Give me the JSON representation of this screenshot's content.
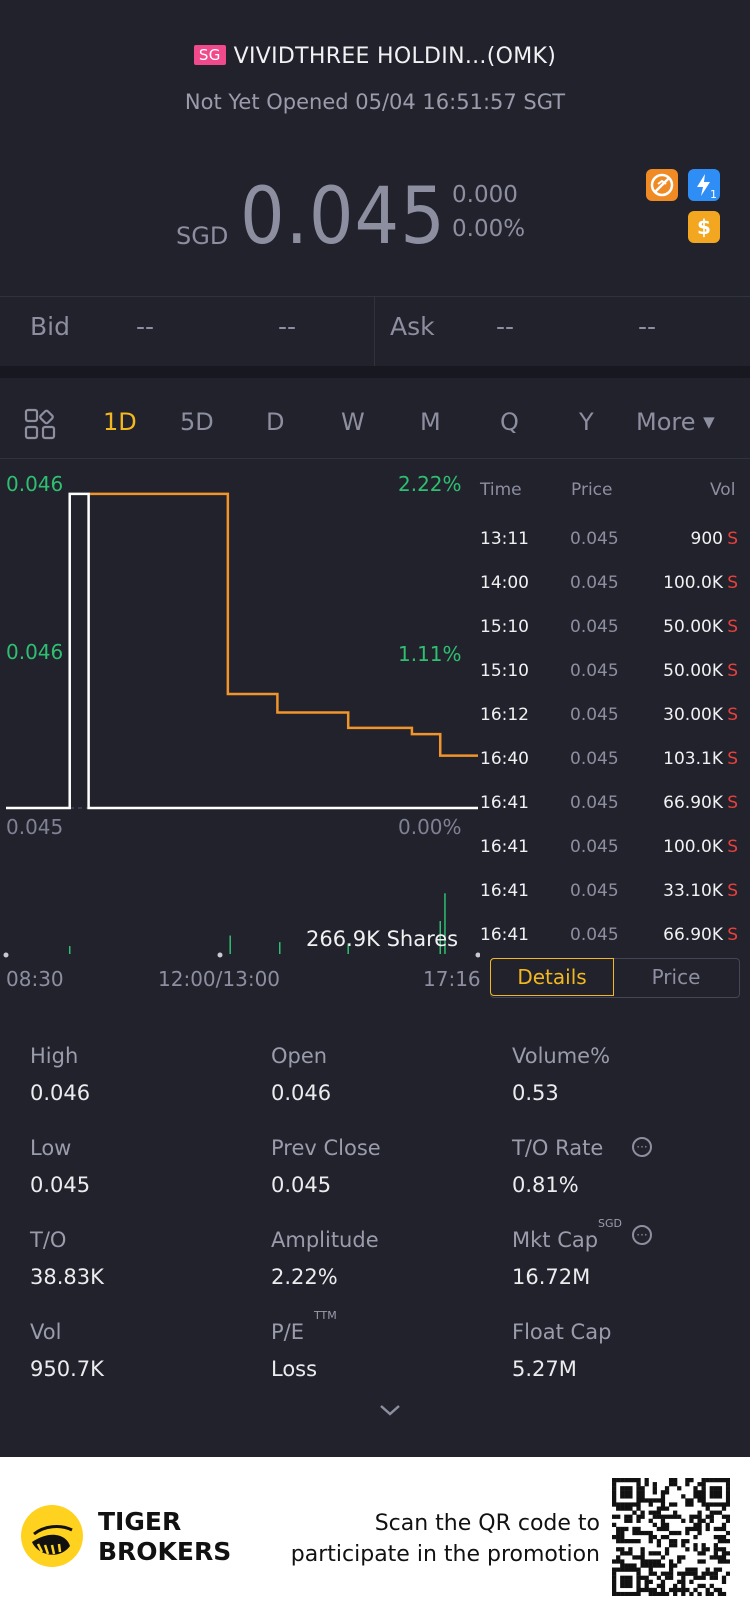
{
  "header": {
    "market_badge": "SG",
    "title": "VIVIDTHREE HOLDIN...(OMK)",
    "status": "Not Yet Opened 05/04 16:51:57 SGT"
  },
  "quote": {
    "currency": "SGD",
    "price": "0.045",
    "change": "0.000",
    "change_pct": "0.00%"
  },
  "icons": [
    "no-short-icon",
    "lightning-level1-icon",
    "dollar-icon"
  ],
  "icon_badge": "1",
  "bid_ask": {
    "bid_label": "Bid",
    "bid_price": "--",
    "bid_size": "--",
    "ask_label": "Ask",
    "ask_price": "--",
    "ask_size": "--"
  },
  "tabs": [
    "1D",
    "5D",
    "D",
    "W",
    "M",
    "Q",
    "Y"
  ],
  "active_tab": "1D",
  "more_label": "More",
  "chart": {
    "y_top": "0.046",
    "y_mid": "0.046",
    "y_bottom": "0.045",
    "pct_top": "2.22%",
    "pct_mid": "1.11%",
    "pct_bottom": "0.00%",
    "volume_label": "266.9K Shares",
    "x_ticks": [
      "08:30",
      "12:00/13:00",
      "17:16"
    ]
  },
  "chart_data": {
    "type": "line",
    "series": [
      {
        "values": [
          [
            0,
            0.045
          ],
          [
            0.135,
            0.045
          ],
          [
            0.135,
            0.04602
          ],
          [
            0.175,
            0.04602
          ],
          [
            0.175,
            0.045
          ],
          [
            1.0,
            0.045
          ]
        ]
      },
      {
        "values": [
          [
            0.175,
            0.04602
          ],
          [
            0.47,
            0.04602
          ],
          [
            0.47,
            0.04537
          ],
          [
            0.575,
            0.04537
          ],
          [
            0.575,
            0.04531
          ],
          [
            0.725,
            0.04531
          ],
          [
            0.725,
            0.04526
          ],
          [
            0.86,
            0.04526
          ],
          [
            0.86,
            0.04524
          ],
          [
            0.92,
            0.04524
          ],
          [
            0.92,
            0.04517
          ],
          [
            1.0,
            0.04517
          ]
        ]
      }
    ],
    "volume_bars": [
      [
        0.135,
        0.06
      ],
      [
        0.475,
        0.14
      ],
      [
        0.58,
        0.09
      ],
      [
        0.725,
        0.08
      ],
      [
        0.92,
        0.25
      ],
      [
        0.93,
        0.46
      ]
    ],
    "ylim": [
      0.045,
      0.046
    ]
  },
  "trades": {
    "headers": [
      "Time",
      "Price",
      "Vol"
    ],
    "rows": [
      {
        "time": "13:11",
        "price": "0.045",
        "vol": "900",
        "side": "S"
      },
      {
        "time": "14:00",
        "price": "0.045",
        "vol": "100.0K",
        "side": "S"
      },
      {
        "time": "15:10",
        "price": "0.045",
        "vol": "50.00K",
        "side": "S"
      },
      {
        "time": "15:10",
        "price": "0.045",
        "vol": "50.00K",
        "side": "S"
      },
      {
        "time": "16:12",
        "price": "0.045",
        "vol": "30.00K",
        "side": "S"
      },
      {
        "time": "16:40",
        "price": "0.045",
        "vol": "103.1K",
        "side": "S"
      },
      {
        "time": "16:41",
        "price": "0.045",
        "vol": "66.90K",
        "side": "S"
      },
      {
        "time": "16:41",
        "price": "0.045",
        "vol": "100.0K",
        "side": "S"
      },
      {
        "time": "16:41",
        "price": "0.045",
        "vol": "33.10K",
        "side": "S"
      },
      {
        "time": "16:41",
        "price": "0.045",
        "vol": "66.90K",
        "side": "S"
      }
    ]
  },
  "segment": {
    "details": "Details",
    "price": "Price"
  },
  "details": {
    "high_label": "High",
    "high": "0.046",
    "open_label": "Open",
    "open": "0.046",
    "volpct_label": "Volume%",
    "volpct": "0.53",
    "low_label": "Low",
    "low": "0.045",
    "prev_label": "Prev Close",
    "prev": "0.045",
    "to_rate_label": "T/O Rate",
    "to_rate": "0.81%",
    "to_label": "T/O",
    "to": "38.83K",
    "amp_label": "Amplitude",
    "amp": "2.22%",
    "mktcap_label": "Mkt Cap",
    "mktcap_sup": "SGD",
    "mktcap": "16.72M",
    "vol_label": "Vol",
    "vol": "950.7K",
    "pe_label": "P/E",
    "pe_sup": "TTM",
    "pe": "Loss",
    "float_label": "Float Cap",
    "float": "5.27M"
  },
  "footer": {
    "brand_line1": "TIGER",
    "brand_line2": "BROKERS",
    "promo_line1": "Scan the QR code to",
    "promo_line2": "participate in the promotion"
  },
  "colors": {
    "background": "#21222c",
    "accent": "#f3b81f",
    "up": "#2fbf71",
    "sell": "#e8413d",
    "line_main": "#ffffff",
    "line_avg": "#f0942b",
    "badge": "#f04a8c"
  }
}
